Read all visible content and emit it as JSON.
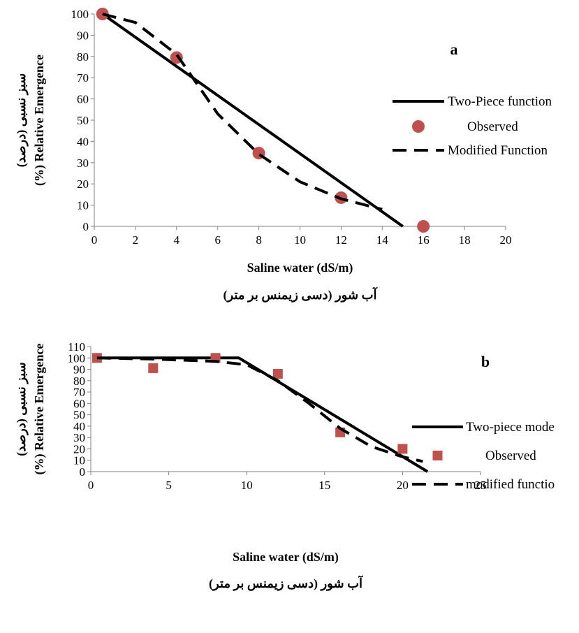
{
  "chart_data": [
    {
      "type": "line",
      "panel_label": "a",
      "xlabel": "Saline water (dS/m)",
      "xlabel_fa": "آب شور (دسی زیمنس بر متر)",
      "ylabel": "(%) Relative Emergence",
      "ylabel_fa": "سبز نسبی (درصد)",
      "xlim": [
        0,
        20
      ],
      "ylim": [
        0,
        100
      ],
      "xticks": [
        0,
        2,
        4,
        6,
        8,
        10,
        12,
        14,
        16,
        18,
        20
      ],
      "yticks": [
        0,
        10,
        20,
        30,
        40,
        50,
        60,
        70,
        80,
        90,
        100
      ],
      "legend_position": "right",
      "series": [
        {
          "name": "Two-Piece function",
          "style": "solid",
          "x": [
            0.4,
            15
          ],
          "y": [
            100,
            0
          ]
        },
        {
          "name": "Observed",
          "style": "marker-circle",
          "x": [
            0.4,
            4,
            8,
            12,
            16
          ],
          "y": [
            100,
            79.5,
            34.5,
            13.5,
            0
          ]
        },
        {
          "name": "Modified Function",
          "style": "dashed",
          "x": [
            0.4,
            2,
            4,
            6,
            8,
            10,
            12,
            14
          ],
          "y": [
            100,
            96,
            81,
            53,
            34,
            21,
            13,
            8
          ]
        }
      ]
    },
    {
      "type": "line",
      "panel_label": "b",
      "xlabel": "Saline water (dS/m)",
      "xlabel_fa": "آب شور (دسی زیمنس بر متر)",
      "ylabel": "(%) Relative Emergence",
      "ylabel_fa": "سبز نسبی (درصد)",
      "xlim": [
        0,
        25
      ],
      "ylim": [
        0,
        110
      ],
      "xticks": [
        0,
        5,
        10,
        15,
        20,
        25
      ],
      "yticks": [
        0,
        10,
        20,
        30,
        40,
        50,
        60,
        70,
        80,
        90,
        100,
        110
      ],
      "legend_position": "right",
      "series": [
        {
          "name": "Two-piece mode",
          "style": "solid",
          "x": [
            0.4,
            9.5,
            21.6
          ],
          "y": [
            100,
            100,
            0
          ]
        },
        {
          "name": "Observed",
          "style": "marker-square",
          "x": [
            0.4,
            4,
            8,
            12,
            16,
            20
          ],
          "y": [
            100,
            91,
            100,
            86,
            34.5,
            20
          ]
        },
        {
          "name": "modified functio",
          "style": "dashed",
          "x": [
            0.4,
            4,
            8,
            10,
            12,
            14,
            16,
            18,
            20,
            21.3
          ],
          "y": [
            100,
            99,
            97,
            94,
            80,
            60,
            38,
            22,
            13,
            9
          ]
        }
      ]
    }
  ],
  "colors": {
    "marker": "#c0504d",
    "line": "#000000",
    "axis": "#808080"
  }
}
